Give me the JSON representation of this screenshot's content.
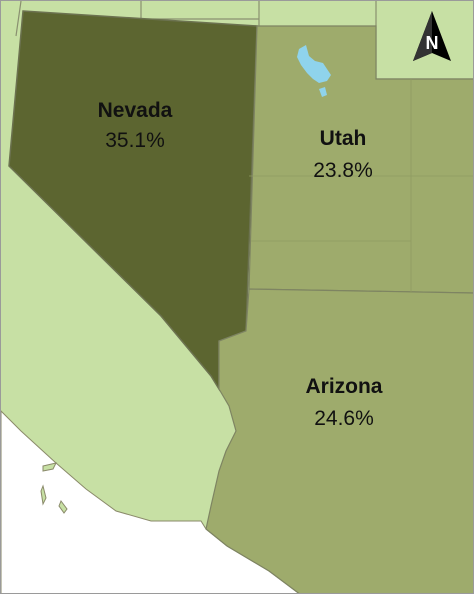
{
  "map": {
    "colors": {
      "ocean": "#ffffff",
      "neighbor_fill": "#c7e0a4",
      "nevada_fill": "#5c6530",
      "utah_fill": "#9eab6c",
      "arizona_fill": "#9eab6c",
      "lake_fill": "#8fd3ec",
      "border": "#7e8462"
    },
    "states": [
      {
        "id": "nevada",
        "name": "Nevada",
        "value": "35.1%"
      },
      {
        "id": "utah",
        "name": "Utah",
        "value": "23.8%"
      },
      {
        "id": "arizona",
        "name": "Arizona",
        "value": "24.6%"
      }
    ],
    "north_arrow": {
      "letter": "N",
      "icon": "north-arrow-icon"
    }
  }
}
